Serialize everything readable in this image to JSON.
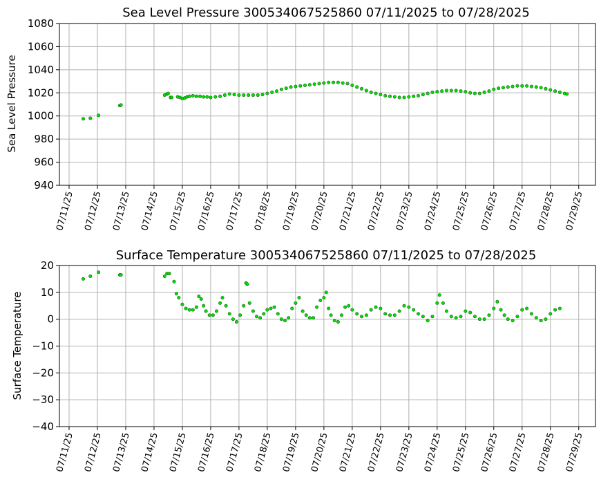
{
  "chart_data": [
    {
      "type": "scatter",
      "title": "Sea Level Pressure 300534067525860  07/11/2025 to 07/28/2025",
      "xlabel": "",
      "ylabel": "Sea Level Pressure",
      "xlim": [
        "07/11/25 00:00",
        "07/29/25 06:00"
      ],
      "ylim": [
        940,
        1080
      ],
      "yticks": [
        940,
        960,
        980,
        1000,
        1020,
        1040,
        1060,
        1080
      ],
      "xticks": [
        "07/11/25",
        "07/12/25",
        "07/13/25",
        "07/14/25",
        "07/15/25",
        "07/16/25",
        "07/17/25",
        "07/18/25",
        "07/19/25",
        "07/20/25",
        "07/21/25",
        "07/22/25",
        "07/23/25",
        "07/24/25",
        "07/25/25",
        "07/26/25",
        "07/27/25",
        "07/28/25",
        "07/29/25"
      ],
      "grid": true,
      "marker_color": "#00e000",
      "series": [
        {
          "points": [
            [
              "07/11/25 12:00",
              997.5
            ],
            [
              "07/11/25 18:00",
              998.0
            ],
            [
              "07/12/25 01:00",
              1000.5
            ],
            [
              "07/12/25 19:00",
              1009.0
            ],
            [
              "07/12/25 20:00",
              1009.5
            ],
            [
              "07/14/25 09:00",
              1018.0
            ],
            [
              "07/14/25 11:00",
              1019.0
            ],
            [
              "07/14/25 12:00",
              1019.5
            ],
            [
              "07/14/25 14:00",
              1016.0
            ],
            [
              "07/14/25 15:00",
              1016.0
            ],
            [
              "07/14/25 20:00",
              1016.5
            ],
            [
              "07/14/25 22:00",
              1016.0
            ],
            [
              "07/15/25 00:00",
              1015.0
            ],
            [
              "07/15/25 02:00",
              1015.5
            ],
            [
              "07/15/25 04:00",
              1016.5
            ],
            [
              "07/15/25 06:00",
              1017.0
            ],
            [
              "07/15/25 09:00",
              1017.5
            ],
            [
              "07/15/25 12:00",
              1017.0
            ],
            [
              "07/15/25 15:00",
              1017.0
            ],
            [
              "07/15/25 18:00",
              1016.5
            ],
            [
              "07/15/25 21:00",
              1016.5
            ],
            [
              "07/16/25 00:00",
              1016.0
            ],
            [
              "07/16/25 04:00",
              1016.5
            ],
            [
              "07/16/25 08:00",
              1017.0
            ],
            [
              "07/16/25 12:00",
              1018.0
            ],
            [
              "07/16/25 16:00",
              1019.0
            ],
            [
              "07/16/25 20:00",
              1018.5
            ],
            [
              "07/17/25 00:00",
              1018.0
            ],
            [
              "07/17/25 04:00",
              1018.0
            ],
            [
              "07/17/25 08:00",
              1018.0
            ],
            [
              "07/17/25 12:00",
              1018.0
            ],
            [
              "07/17/25 16:00",
              1018.0
            ],
            [
              "07/17/25 20:00",
              1018.5
            ],
            [
              "07/18/25 00:00",
              1019.5
            ],
            [
              "07/18/25 04:00",
              1020.5
            ],
            [
              "07/18/25 08:00",
              1021.5
            ],
            [
              "07/18/25 12:00",
              1023.0
            ],
            [
              "07/18/25 16:00",
              1024.0
            ],
            [
              "07/18/25 20:00",
              1025.0
            ],
            [
              "07/19/25 00:00",
              1025.5
            ],
            [
              "07/19/25 04:00",
              1026.0
            ],
            [
              "07/19/25 08:00",
              1026.5
            ],
            [
              "07/19/25 12:00",
              1027.0
            ],
            [
              "07/19/25 16:00",
              1027.5
            ],
            [
              "07/19/25 20:00",
              1028.0
            ],
            [
              "07/20/25 00:00",
              1028.5
            ],
            [
              "07/20/25 04:00",
              1029.0
            ],
            [
              "07/20/25 08:00",
              1029.0
            ],
            [
              "07/20/25 12:00",
              1029.0
            ],
            [
              "07/20/25 16:00",
              1028.5
            ],
            [
              "07/20/25 20:00",
              1028.0
            ],
            [
              "07/21/25 00:00",
              1026.5
            ],
            [
              "07/21/25 04:00",
              1025.0
            ],
            [
              "07/21/25 08:00",
              1023.5
            ],
            [
              "07/21/25 12:00",
              1022.0
            ],
            [
              "07/21/25 16:00",
              1020.5
            ],
            [
              "07/21/25 20:00",
              1019.5
            ],
            [
              "07/22/25 00:00",
              1018.5
            ],
            [
              "07/22/25 04:00",
              1017.5
            ],
            [
              "07/22/25 08:00",
              1017.0
            ],
            [
              "07/22/25 12:00",
              1016.5
            ],
            [
              "07/22/25 16:00",
              1016.0
            ],
            [
              "07/22/25 20:00",
              1016.0
            ],
            [
              "07/23/25 00:00",
              1016.5
            ],
            [
              "07/23/25 04:00",
              1017.0
            ],
            [
              "07/23/25 08:00",
              1017.5
            ],
            [
              "07/23/25 12:00",
              1018.5
            ],
            [
              "07/23/25 16:00",
              1019.5
            ],
            [
              "07/23/25 20:00",
              1020.5
            ],
            [
              "07/24/25 00:00",
              1021.0
            ],
            [
              "07/24/25 04:00",
              1021.5
            ],
            [
              "07/24/25 08:00",
              1022.0
            ],
            [
              "07/24/25 12:00",
              1022.0
            ],
            [
              "07/24/25 16:00",
              1022.0
            ],
            [
              "07/24/25 20:00",
              1021.5
            ],
            [
              "07/25/25 00:00",
              1021.0
            ],
            [
              "07/25/25 04:00",
              1020.0
            ],
            [
              "07/25/25 08:00",
              1019.5
            ],
            [
              "07/25/25 12:00",
              1019.5
            ],
            [
              "07/25/25 16:00",
              1020.5
            ],
            [
              "07/25/25 20:00",
              1021.5
            ],
            [
              "07/26/25 00:00",
              1023.0
            ],
            [
              "07/26/25 04:00",
              1024.0
            ],
            [
              "07/26/25 08:00",
              1024.5
            ],
            [
              "07/26/25 12:00",
              1025.0
            ],
            [
              "07/26/25 16:00",
              1025.5
            ],
            [
              "07/26/25 20:00",
              1026.0
            ],
            [
              "07/27/25 00:00",
              1026.0
            ],
            [
              "07/27/25 04:00",
              1026.0
            ],
            [
              "07/27/25 08:00",
              1025.5
            ],
            [
              "07/27/25 12:00",
              1025.0
            ],
            [
              "07/27/25 16:00",
              1024.5
            ],
            [
              "07/27/25 20:00",
              1023.5
            ],
            [
              "07/28/25 00:00",
              1022.5
            ],
            [
              "07/28/25 04:00",
              1021.5
            ],
            [
              "07/28/25 08:00",
              1020.5
            ],
            [
              "07/28/25 12:00",
              1019.5
            ],
            [
              "07/28/25 14:00",
              1019.0
            ]
          ]
        }
      ]
    },
    {
      "type": "scatter",
      "title": "Surface Temperature 300534067525860  07/11/2025 to 07/28/2025",
      "xlabel": "",
      "ylabel": "Surface Temperature",
      "xlim": [
        "07/11/25 00:00",
        "07/29/25 06:00"
      ],
      "ylim": [
        -40,
        20
      ],
      "yticks": [
        -40,
        -30,
        -20,
        -10,
        0,
        10,
        20
      ],
      "xticks": [
        "07/11/25",
        "07/12/25",
        "07/13/25",
        "07/14/25",
        "07/15/25",
        "07/16/25",
        "07/17/25",
        "07/18/25",
        "07/19/25",
        "07/20/25",
        "07/21/25",
        "07/22/25",
        "07/23/25",
        "07/24/25",
        "07/25/25",
        "07/26/25",
        "07/27/25",
        "07/28/25",
        "07/29/25"
      ],
      "grid": true,
      "marker_color": "#00e000",
      "series": [
        {
          "points": [
            [
              "07/11/25 12:00",
              15.0
            ],
            [
              "07/11/25 18:00",
              16.0
            ],
            [
              "07/12/25 01:00",
              17.5
            ],
            [
              "07/12/25 19:00",
              16.5
            ],
            [
              "07/12/25 20:00",
              16.5
            ],
            [
              "07/14/25 09:00",
              16.0
            ],
            [
              "07/14/25 11:00",
              17.0
            ],
            [
              "07/14/25 13:00",
              17.0
            ],
            [
              "07/14/25 17:00",
              14.0
            ],
            [
              "07/14/25 19:00",
              9.5
            ],
            [
              "07/14/25 21:00",
              8.0
            ],
            [
              "07/15/25 00:00",
              5.5
            ],
            [
              "07/15/25 03:00",
              4.0
            ],
            [
              "07/15/25 06:00",
              3.5
            ],
            [
              "07/15/25 09:00",
              3.5
            ],
            [
              "07/15/25 12:00",
              4.5
            ],
            [
              "07/15/25 14:00",
              8.5
            ],
            [
              "07/15/25 16:00",
              7.5
            ],
            [
              "07/15/25 18:00",
              5.0
            ],
            [
              "07/15/25 20:00",
              3.0
            ],
            [
              "07/15/25 23:00",
              1.5
            ],
            [
              "07/16/25 02:00",
              1.5
            ],
            [
              "07/16/25 05:00",
              3.0
            ],
            [
              "07/16/25 08:00",
              6.0
            ],
            [
              "07/16/25 10:00",
              8.0
            ],
            [
              "07/16/25 13:00",
              5.0
            ],
            [
              "07/16/25 16:00",
              2.0
            ],
            [
              "07/16/25 19:00",
              0.0
            ],
            [
              "07/16/25 22:00",
              -1.0
            ],
            [
              "07/17/25 01:00",
              1.5
            ],
            [
              "07/17/25 04:00",
              5.0
            ],
            [
              "07/17/25 06:00",
              13.5
            ],
            [
              "07/17/25 07:00",
              13.0
            ],
            [
              "07/17/25 09:00",
              6.0
            ],
            [
              "07/17/25 12:00",
              3.0
            ],
            [
              "07/17/25 15:00",
              1.0
            ],
            [
              "07/17/25 18:00",
              0.5
            ],
            [
              "07/17/25 21:00",
              2.0
            ],
            [
              "07/18/25 00:00",
              3.5
            ],
            [
              "07/18/25 03:00",
              4.0
            ],
            [
              "07/18/25 06:00",
              4.5
            ],
            [
              "07/18/25 09:00",
              2.0
            ],
            [
              "07/18/25 12:00",
              0.0
            ],
            [
              "07/18/25 15:00",
              -0.5
            ],
            [
              "07/18/25 18:00",
              0.5
            ],
            [
              "07/18/25 21:00",
              4.0
            ],
            [
              "07/19/25 00:00",
              6.0
            ],
            [
              "07/19/25 03:00",
              8.0
            ],
            [
              "07/19/25 06:00",
              3.0
            ],
            [
              "07/19/25 09:00",
              1.5
            ],
            [
              "07/19/25 12:00",
              0.5
            ],
            [
              "07/19/25 15:00",
              0.5
            ],
            [
              "07/19/25 18:00",
              4.5
            ],
            [
              "07/19/25 21:00",
              7.0
            ],
            [
              "07/20/25 00:00",
              8.0
            ],
            [
              "07/20/25 02:00",
              10.0
            ],
            [
              "07/20/25 04:00",
              4.0
            ],
            [
              "07/20/25 06:00",
              1.5
            ],
            [
              "07/20/25 09:00",
              -0.5
            ],
            [
              "07/20/25 12:00",
              -1.0
            ],
            [
              "07/20/25 15:00",
              1.5
            ],
            [
              "07/20/25 18:00",
              4.5
            ],
            [
              "07/20/25 21:00",
              5.0
            ],
            [
              "07/21/25 00:00",
              3.5
            ],
            [
              "07/21/25 04:00",
              2.0
            ],
            [
              "07/21/25 08:00",
              1.0
            ],
            [
              "07/21/25 12:00",
              1.5
            ],
            [
              "07/21/25 16:00",
              3.5
            ],
            [
              "07/21/25 20:00",
              4.5
            ],
            [
              "07/22/25 00:00",
              4.0
            ],
            [
              "07/22/25 04:00",
              2.0
            ],
            [
              "07/22/25 08:00",
              1.5
            ],
            [
              "07/22/25 12:00",
              1.5
            ],
            [
              "07/22/25 16:00",
              3.0
            ],
            [
              "07/22/25 20:00",
              5.0
            ],
            [
              "07/23/25 00:00",
              4.5
            ],
            [
              "07/23/25 04:00",
              3.5
            ],
            [
              "07/23/25 08:00",
              2.0
            ],
            [
              "07/23/25 12:00",
              1.0
            ],
            [
              "07/23/25 16:00",
              -0.5
            ],
            [
              "07/23/25 20:00",
              1.0
            ],
            [
              "07/24/25 00:00",
              6.0
            ],
            [
              "07/24/25 02:00",
              9.0
            ],
            [
              "07/24/25 05:00",
              6.0
            ],
            [
              "07/24/25 08:00",
              3.0
            ],
            [
              "07/24/25 12:00",
              1.0
            ],
            [
              "07/24/25 16:00",
              0.5
            ],
            [
              "07/24/25 20:00",
              1.0
            ],
            [
              "07/25/25 00:00",
              3.0
            ],
            [
              "07/25/25 04:00",
              2.5
            ],
            [
              "07/25/25 08:00",
              1.0
            ],
            [
              "07/25/25 12:00",
              0.0
            ],
            [
              "07/25/25 16:00",
              0.0
            ],
            [
              "07/25/25 20:00",
              1.5
            ],
            [
              "07/26/25 00:00",
              4.0
            ],
            [
              "07/26/25 03:00",
              6.5
            ],
            [
              "07/26/25 06:00",
              3.5
            ],
            [
              "07/26/25 09:00",
              1.5
            ],
            [
              "07/26/25 12:00",
              0.0
            ],
            [
              "07/26/25 16:00",
              -0.5
            ],
            [
              "07/26/25 20:00",
              1.0
            ],
            [
              "07/27/25 00:00",
              3.5
            ],
            [
              "07/27/25 04:00",
              4.0
            ],
            [
              "07/27/25 08:00",
              2.0
            ],
            [
              "07/27/25 12:00",
              0.5
            ],
            [
              "07/27/25 16:00",
              -0.5
            ],
            [
              "07/27/25 20:00",
              0.0
            ],
            [
              "07/28/25 00:00",
              2.0
            ],
            [
              "07/28/25 04:00",
              3.5
            ],
            [
              "07/28/25 08:00",
              4.0
            ]
          ]
        }
      ]
    }
  ]
}
